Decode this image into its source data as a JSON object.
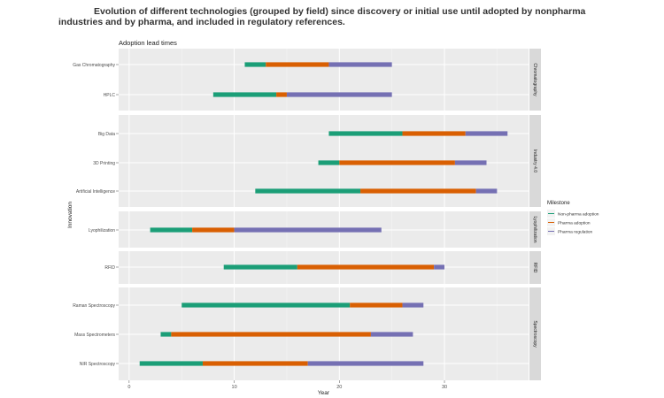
{
  "figure": {
    "title": "Evolution of different technologies (grouped by field) since discovery or initial use until adopted by nonpharma industries and by pharma, and included in regulatory references."
  },
  "chart_data": {
    "type": "gantt",
    "title": "Adoption lead times",
    "xlabel": "Year",
    "ylabel": "Innovation",
    "xlim": [
      -1,
      38
    ],
    "xticks": [
      0,
      10,
      20,
      30
    ],
    "grid": true,
    "legend": {
      "title": "Milestone",
      "position": "right",
      "items": [
        {
          "name": "Non-pharma adoption",
          "color": "#1b9e77"
        },
        {
          "name": "Pharma adoption",
          "color": "#d95f02"
        },
        {
          "name": "Pharma regulation",
          "color": "#7570b3"
        }
      ]
    },
    "facets": [
      {
        "name": "Chromatography",
        "items": [
          {
            "label": "Gas Chromatography",
            "segments": [
              [
                11,
                13
              ],
              [
                13,
                19
              ],
              [
                19,
                25
              ]
            ]
          },
          {
            "label": "HPLC",
            "segments": [
              [
                8,
                14
              ],
              [
                14,
                15
              ],
              [
                15,
                25
              ]
            ]
          }
        ]
      },
      {
        "name": "Industry 4.0",
        "items": [
          {
            "label": "Big Data",
            "segments": [
              [
                19,
                26
              ],
              [
                26,
                32
              ],
              [
                32,
                36
              ]
            ]
          },
          {
            "label": "3D Printing",
            "segments": [
              [
                18,
                20
              ],
              [
                20,
                31
              ],
              [
                31,
                34
              ]
            ]
          },
          {
            "label": "Artificial Intelligence",
            "segments": [
              [
                12,
                22
              ],
              [
                22,
                33
              ],
              [
                33,
                35
              ]
            ]
          }
        ]
      },
      {
        "name": "Lyophilization",
        "items": [
          {
            "label": "Lyophilization",
            "segments": [
              [
                2,
                6
              ],
              [
                6,
                10
              ],
              [
                10,
                24
              ]
            ]
          }
        ]
      },
      {
        "name": "RFID",
        "items": [
          {
            "label": "RFID",
            "segments": [
              [
                9,
                16
              ],
              [
                16,
                29
              ],
              [
                29,
                30
              ]
            ]
          }
        ]
      },
      {
        "name": "Spectroscopy",
        "items": [
          {
            "label": "Raman Spectroscopy",
            "segments": [
              [
                5,
                21
              ],
              [
                21,
                26
              ],
              [
                26,
                28
              ]
            ]
          },
          {
            "label": "Mass Spectrometers",
            "segments": [
              [
                3,
                4
              ],
              [
                4,
                23
              ],
              [
                23,
                27
              ]
            ]
          },
          {
            "label": "NIR Spectroscopy",
            "segments": [
              [
                1,
                7
              ],
              [
                7,
                17
              ],
              [
                17,
                28
              ]
            ]
          }
        ]
      }
    ]
  }
}
